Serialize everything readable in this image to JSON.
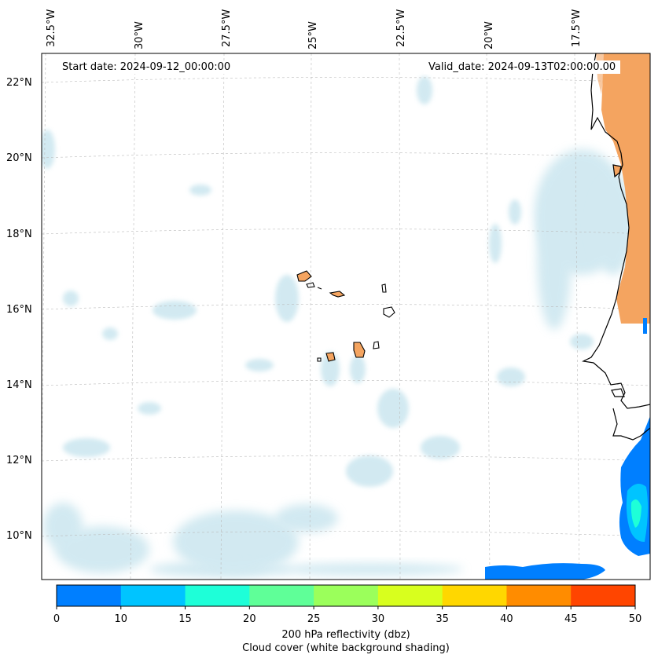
{
  "map": {
    "start_date": "Start date: 2024-09-12_00:00:00",
    "valid_date": "Valid_date: 2024-09-13T02:00:00.00",
    "lon_labels": [
      "32.5°W",
      "30°W",
      "27.5°W",
      "25°W",
      "22.5°W",
      "20°W",
      "17.5°W"
    ],
    "lat_labels": [
      "22°N",
      "20°N",
      "18°N",
      "16°N",
      "14°N",
      "12°N",
      "10°N"
    ],
    "colors": {
      "land_fill": "#f4a460",
      "coast": "#000000",
      "cloud": "#add8e6",
      "grid": "#bbbbbb"
    }
  },
  "colorbar": {
    "ticks": [
      "0",
      "10",
      "15",
      "20",
      "25",
      "30",
      "35",
      "40",
      "45",
      "50"
    ],
    "colors": [
      "#007fff",
      "#00c4ff",
      "#1effd8",
      "#5fff98",
      "#9bff5b",
      "#d8ff1e",
      "#ffd700",
      "#ff8c00",
      "#ff4500"
    ],
    "label_line1": "200 hPa reflectivity (dbz)",
    "label_line2": "Cloud cover (white background shading)"
  }
}
